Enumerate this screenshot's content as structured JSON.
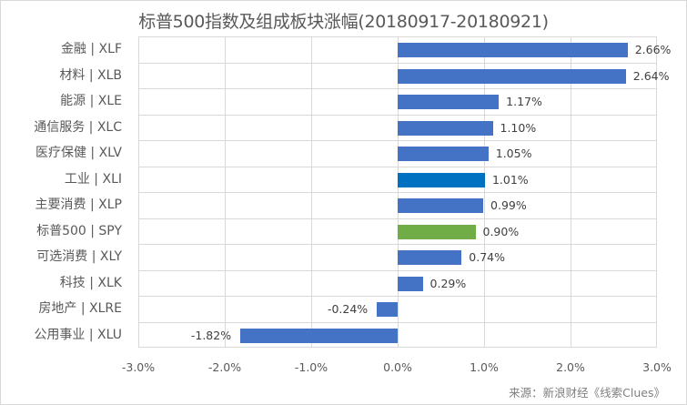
{
  "chart_data": {
    "type": "bar",
    "orientation": "horizontal",
    "title": "标普500指数及组成板块涨幅(20180917-20180921)",
    "xlabel": "",
    "ylabel": "",
    "xlim": [
      -3.0,
      3.0
    ],
    "x_ticks": [
      "-3.0%",
      "-2.0%",
      "-1.0%",
      "0.0%",
      "1.0%",
      "2.0%",
      "3.0%"
    ],
    "grid": true,
    "legend": null,
    "categories": [
      "金融 | XLF",
      "材料 | XLB",
      "能源 | XLE",
      "通信服务 | XLC",
      "医疗保健 | XLV",
      "工业 | XLI",
      "主要消费 | XLP",
      "标普500 | SPY",
      "可选消费 | XLY",
      "科技 | XLK",
      "房地产 | XLRE",
      "公用事业 | XLU"
    ],
    "values": [
      2.66,
      2.64,
      1.17,
      1.1,
      1.05,
      1.01,
      0.99,
      0.9,
      0.74,
      0.29,
      -0.24,
      -1.82
    ],
    "value_labels": [
      "2.66%",
      "2.64%",
      "1.17%",
      "1.10%",
      "1.05%",
      "1.01%",
      "0.99%",
      "0.90%",
      "0.74%",
      "0.29%",
      "-0.24%",
      "-1.82%"
    ],
    "colors": [
      "#4472c4",
      "#4472c4",
      "#4472c4",
      "#4472c4",
      "#4472c4",
      "#0070c0",
      "#4472c4",
      "#70ad47",
      "#4472c4",
      "#4472c4",
      "#4472c4",
      "#4472c4"
    ],
    "source": "来源：新浪财经《线索Clues》"
  }
}
